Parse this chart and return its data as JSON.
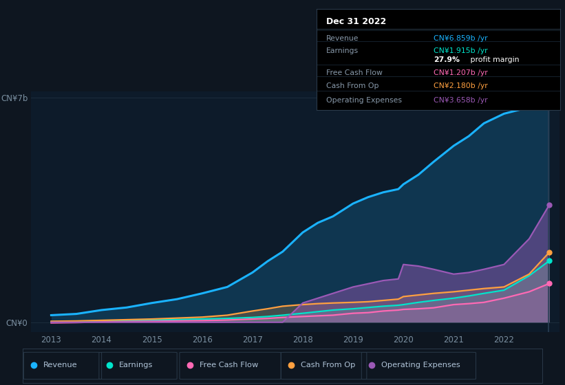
{
  "background_color": "#0e1620",
  "chart_bg": "#0d1b2a",
  "years": [
    2013,
    2013.5,
    2014,
    2014.5,
    2015,
    2015.5,
    2016,
    2016.5,
    2017,
    2017.3,
    2017.6,
    2018,
    2018.3,
    2018.6,
    2019,
    2019.3,
    2019.6,
    2019.9,
    2020,
    2020.3,
    2020.6,
    2021,
    2021.3,
    2021.6,
    2022,
    2022.5,
    2022.9
  ],
  "revenue": [
    0.22,
    0.26,
    0.38,
    0.46,
    0.6,
    0.72,
    0.9,
    1.1,
    1.55,
    1.9,
    2.2,
    2.8,
    3.1,
    3.3,
    3.7,
    3.9,
    4.05,
    4.15,
    4.3,
    4.6,
    5.0,
    5.5,
    5.8,
    6.2,
    6.5,
    6.7,
    6.86
  ],
  "earnings": [
    0.02,
    0.025,
    0.04,
    0.05,
    0.07,
    0.085,
    0.1,
    0.12,
    0.15,
    0.18,
    0.22,
    0.28,
    0.33,
    0.38,
    0.42,
    0.46,
    0.5,
    0.53,
    0.55,
    0.62,
    0.68,
    0.75,
    0.82,
    0.9,
    1.0,
    1.45,
    1.915
  ],
  "free_cash": [
    -0.02,
    -0.01,
    0.01,
    0.02,
    0.03,
    0.04,
    0.05,
    0.07,
    0.1,
    0.12,
    0.15,
    0.18,
    0.2,
    0.22,
    0.28,
    0.3,
    0.35,
    0.38,
    0.4,
    0.42,
    0.45,
    0.55,
    0.58,
    0.62,
    0.75,
    0.95,
    1.207
  ],
  "cash_from_op": [
    0.03,
    0.04,
    0.06,
    0.08,
    0.1,
    0.13,
    0.16,
    0.22,
    0.35,
    0.42,
    0.5,
    0.55,
    0.58,
    0.6,
    0.62,
    0.64,
    0.68,
    0.72,
    0.8,
    0.85,
    0.9,
    0.95,
    1.0,
    1.05,
    1.1,
    1.5,
    2.18
  ],
  "op_expenses": [
    0.0,
    0.0,
    0.0,
    0.0,
    0.0,
    0.0,
    0.0,
    0.0,
    0.0,
    0.0,
    0.0,
    0.6,
    0.75,
    0.9,
    1.1,
    1.2,
    1.3,
    1.35,
    1.8,
    1.75,
    1.65,
    1.5,
    1.55,
    1.65,
    1.8,
    2.6,
    3.658
  ],
  "revenue_color": "#1ab3ff",
  "earnings_color": "#00e5cc",
  "free_cash_color": "#ff69b4",
  "cash_from_op_color": "#ffa040",
  "op_expenses_color": "#9b59b6",
  "xlim": [
    2012.6,
    2023.1
  ],
  "ylim": [
    -0.3,
    7.2
  ],
  "grid_color": "#1e3040",
  "tick_color": "#7a8fa0",
  "xticks": [
    2013,
    2014,
    2015,
    2016,
    2017,
    2018,
    2019,
    2020,
    2021,
    2022
  ],
  "tooltip_title": "Dec 31 2022",
  "tooltip_rows": [
    {
      "label": "Revenue",
      "value": "CN¥6.859b /yr",
      "color": "#1ab3ff"
    },
    {
      "label": "Earnings",
      "value": "CN¥1.915b /yr",
      "color": "#00e5cc"
    },
    {
      "label": "",
      "value": "27.9% profit margin",
      "color": "#ffffff",
      "bold_prefix": "27.9%"
    },
    {
      "label": "Free Cash Flow",
      "value": "CN¥1.207b /yr",
      "color": "#ff69b4"
    },
    {
      "label": "Cash From Op",
      "value": "CN¥2.180b /yr",
      "color": "#ffa040"
    },
    {
      "label": "Operating Expenses",
      "value": "CN¥3.658b /yr",
      "color": "#9b59b6"
    }
  ],
  "legend_items": [
    {
      "label": "Revenue",
      "color": "#1ab3ff"
    },
    {
      "label": "Earnings",
      "color": "#00e5cc"
    },
    {
      "label": "Free Cash Flow",
      "color": "#ff69b4"
    },
    {
      "label": "Cash From Op",
      "color": "#ffa040"
    },
    {
      "label": "Operating Expenses",
      "color": "#9b59b6"
    }
  ]
}
